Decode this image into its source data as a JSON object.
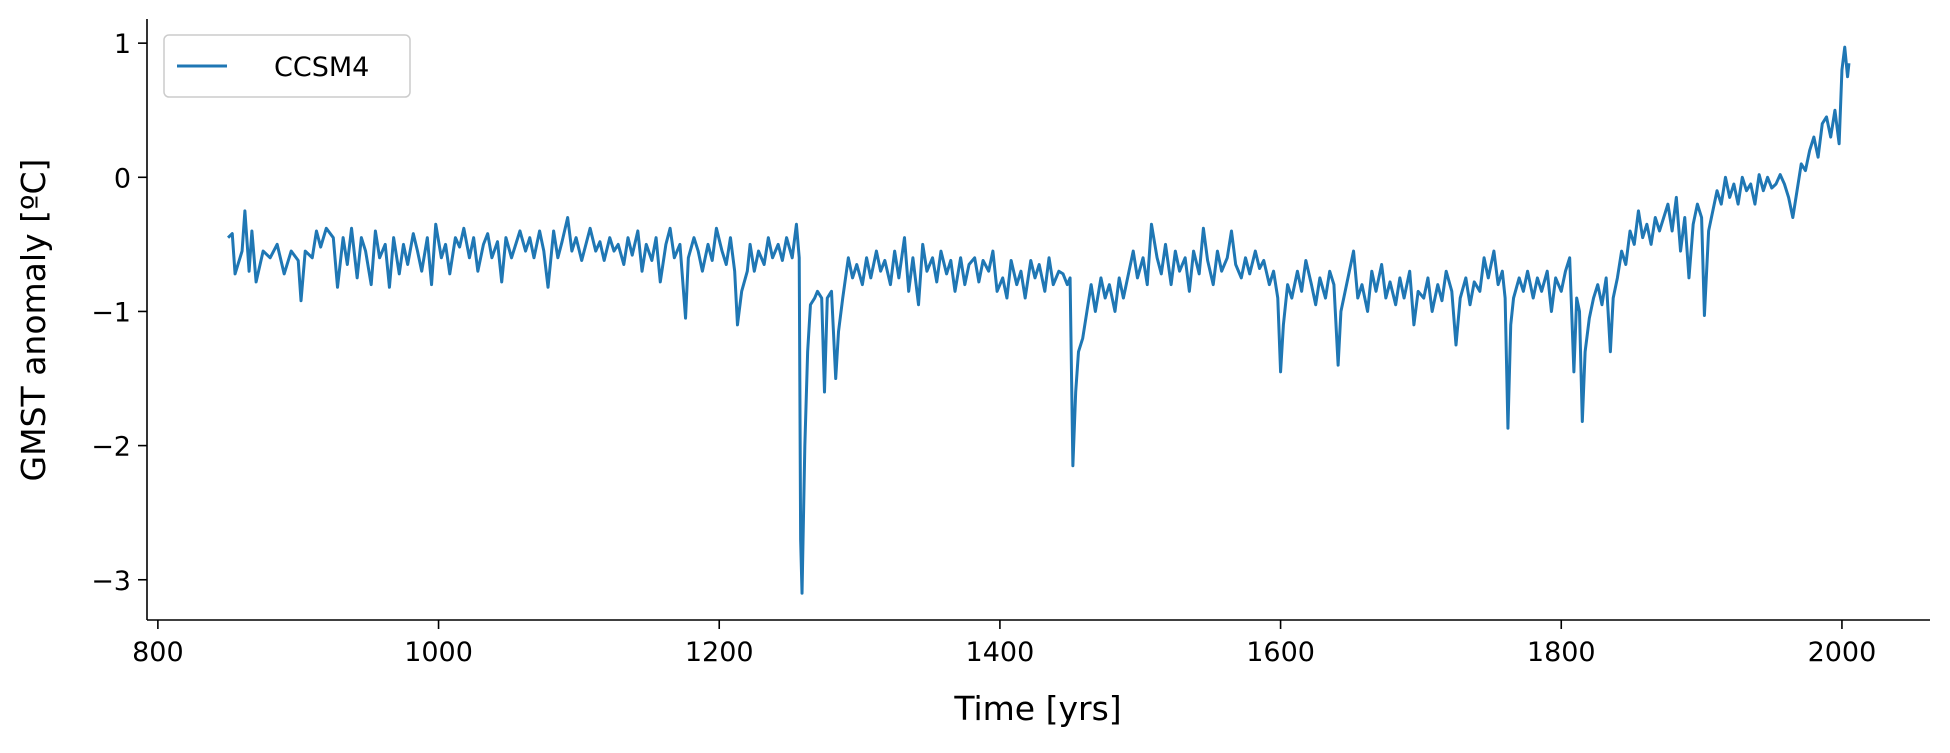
{
  "chart_data": {
    "type": "line",
    "xlabel": "Time [yrs]",
    "ylabel": "GMST anomaly [ºC]",
    "xlim": [
      792.25,
      2062.75
    ],
    "ylim": [
      -3.3,
      1.18
    ],
    "xticks": [
      800,
      1000,
      1200,
      1400,
      1600,
      1800,
      2000
    ],
    "yticks": [
      {
        "value": -3,
        "label": "−3"
      },
      {
        "value": -2,
        "label": "−2"
      },
      {
        "value": -1,
        "label": "−1"
      },
      0,
      1
    ],
    "legend": "upper left",
    "grid": false,
    "x": [
      850,
      853,
      855,
      860,
      862,
      865,
      867,
      870,
      875,
      880,
      885,
      890,
      895,
      900,
      902,
      905,
      910,
      913,
      916,
      920,
      925,
      928,
      932,
      935,
      938,
      942,
      945,
      948,
      952,
      955,
      958,
      962,
      965,
      968,
      972,
      975,
      978,
      982,
      985,
      988,
      992,
      995,
      998,
      1002,
      1005,
      1008,
      1012,
      1015,
      1018,
      1022,
      1025,
      1028,
      1032,
      1035,
      1038,
      1042,
      1045,
      1048,
      1052,
      1055,
      1058,
      1062,
      1065,
      1068,
      1072,
      1075,
      1078,
      1082,
      1085,
      1088,
      1092,
      1095,
      1098,
      1102,
      1105,
      1108,
      1112,
      1115,
      1118,
      1122,
      1125,
      1128,
      1132,
      1135,
      1138,
      1142,
      1145,
      1148,
      1152,
      1155,
      1158,
      1162,
      1165,
      1168,
      1172,
      1176,
      1178,
      1182,
      1185,
      1188,
      1192,
      1195,
      1198,
      1202,
      1205,
      1208,
      1211,
      1213,
      1216,
      1220,
      1222,
      1225,
      1228,
      1232,
      1235,
      1238,
      1242,
      1245,
      1248,
      1252,
      1255,
      1257,
      1258,
      1259,
      1261,
      1263,
      1265,
      1268,
      1270,
      1273,
      1275,
      1277,
      1280,
      1283,
      1285,
      1288,
      1292,
      1295,
      1298,
      1302,
      1305,
      1308,
      1312,
      1315,
      1318,
      1322,
      1325,
      1328,
      1332,
      1335,
      1338,
      1342,
      1345,
      1348,
      1352,
      1355,
      1358,
      1362,
      1365,
      1368,
      1372,
      1375,
      1378,
      1382,
      1385,
      1388,
      1392,
      1395,
      1398,
      1402,
      1405,
      1408,
      1412,
      1415,
      1418,
      1422,
      1425,
      1428,
      1432,
      1435,
      1438,
      1442,
      1445,
      1448,
      1450,
      1452,
      1454,
      1456,
      1459,
      1462,
      1465,
      1468,
      1472,
      1475,
      1478,
      1482,
      1485,
      1488,
      1492,
      1495,
      1498,
      1502,
      1505,
      1508,
      1512,
      1515,
      1518,
      1522,
      1525,
      1528,
      1532,
      1535,
      1538,
      1542,
      1545,
      1548,
      1552,
      1555,
      1558,
      1562,
      1565,
      1568,
      1572,
      1575,
      1578,
      1582,
      1585,
      1588,
      1592,
      1595,
      1598,
      1600,
      1602,
      1605,
      1608,
      1612,
      1615,
      1618,
      1622,
      1625,
      1628,
      1632,
      1635,
      1638,
      1641,
      1643,
      1645,
      1648,
      1652,
      1655,
      1658,
      1662,
      1665,
      1668,
      1672,
      1675,
      1678,
      1682,
      1685,
      1688,
      1692,
      1695,
      1698,
      1702,
      1705,
      1708,
      1712,
      1715,
      1718,
      1722,
      1725,
      1728,
      1732,
      1735,
      1738,
      1742,
      1745,
      1748,
      1752,
      1755,
      1758,
      1760,
      1762,
      1764,
      1766,
      1770,
      1773,
      1776,
      1780,
      1783,
      1786,
      1790,
      1793,
      1796,
      1800,
      1803,
      1806,
      1809,
      1811,
      1813,
      1815,
      1817,
      1820,
      1823,
      1826,
      1829,
      1832,
      1835,
      1837,
      1840,
      1843,
      1846,
      1849,
      1852,
      1855,
      1858,
      1861,
      1864,
      1867,
      1870,
      1873,
      1876,
      1879,
      1882,
      1885,
      1888,
      1891,
      1894,
      1897,
      1900,
      1902,
      1905,
      1908,
      1911,
      1914,
      1917,
      1920,
      1923,
      1926,
      1929,
      1932,
      1935,
      1938,
      1941,
      1944,
      1947,
      1950,
      1953,
      1956,
      1959,
      1962,
      1965,
      1968,
      1971,
      1974,
      1977,
      1980,
      1983,
      1986,
      1989,
      1992,
      1995,
      1998,
      2000,
      2002,
      2004,
      2005
    ],
    "series": [
      {
        "name": "CCSM4",
        "color": "#1f77b4",
        "values": [
          -0.45,
          -0.42,
          -0.72,
          -0.55,
          -0.25,
          -0.7,
          -0.4,
          -0.78,
          -0.55,
          -0.6,
          -0.5,
          -0.72,
          -0.55,
          -0.62,
          -0.92,
          -0.55,
          -0.6,
          -0.4,
          -0.52,
          -0.38,
          -0.45,
          -0.82,
          -0.45,
          -0.65,
          -0.38,
          -0.75,
          -0.45,
          -0.55,
          -0.8,
          -0.4,
          -0.6,
          -0.5,
          -0.82,
          -0.45,
          -0.72,
          -0.5,
          -0.65,
          -0.42,
          -0.55,
          -0.7,
          -0.45,
          -0.8,
          -0.35,
          -0.6,
          -0.5,
          -0.72,
          -0.45,
          -0.52,
          -0.38,
          -0.6,
          -0.45,
          -0.7,
          -0.5,
          -0.42,
          -0.6,
          -0.48,
          -0.78,
          -0.45,
          -0.6,
          -0.5,
          -0.4,
          -0.55,
          -0.45,
          -0.6,
          -0.4,
          -0.55,
          -0.82,
          -0.4,
          -0.6,
          -0.48,
          -0.3,
          -0.55,
          -0.45,
          -0.62,
          -0.5,
          -0.38,
          -0.55,
          -0.48,
          -0.62,
          -0.45,
          -0.55,
          -0.5,
          -0.65,
          -0.45,
          -0.58,
          -0.4,
          -0.7,
          -0.5,
          -0.62,
          -0.45,
          -0.78,
          -0.5,
          -0.38,
          -0.6,
          -0.5,
          -1.05,
          -0.6,
          -0.45,
          -0.55,
          -0.7,
          -0.5,
          -0.62,
          -0.38,
          -0.55,
          -0.65,
          -0.45,
          -0.7,
          -1.1,
          -0.85,
          -0.7,
          -0.5,
          -0.7,
          -0.55,
          -0.65,
          -0.45,
          -0.6,
          -0.5,
          -0.62,
          -0.45,
          -0.6,
          -0.35,
          -0.6,
          -2.7,
          -3.1,
          -2.0,
          -1.3,
          -0.95,
          -0.9,
          -0.85,
          -0.9,
          -1.6,
          -0.9,
          -0.85,
          -1.5,
          -1.15,
          -0.9,
          -0.6,
          -0.75,
          -0.65,
          -0.8,
          -0.6,
          -0.75,
          -0.55,
          -0.7,
          -0.62,
          -0.8,
          -0.55,
          -0.75,
          -0.45,
          -0.85,
          -0.6,
          -0.95,
          -0.5,
          -0.7,
          -0.6,
          -0.78,
          -0.55,
          -0.72,
          -0.62,
          -0.85,
          -0.6,
          -0.8,
          -0.65,
          -0.6,
          -0.78,
          -0.62,
          -0.7,
          -0.55,
          -0.85,
          -0.75,
          -0.9,
          -0.62,
          -0.8,
          -0.7,
          -0.9,
          -0.62,
          -0.75,
          -0.65,
          -0.85,
          -0.6,
          -0.8,
          -0.7,
          -0.72,
          -0.8,
          -0.75,
          -2.15,
          -1.6,
          -1.3,
          -1.2,
          -1.0,
          -0.8,
          -1.0,
          -0.75,
          -0.9,
          -0.8,
          -1.0,
          -0.75,
          -0.9,
          -0.7,
          -0.55,
          -0.75,
          -0.6,
          -0.8,
          -0.35,
          -0.6,
          -0.72,
          -0.5,
          -0.8,
          -0.55,
          -0.7,
          -0.6,
          -0.85,
          -0.55,
          -0.72,
          -0.38,
          -0.62,
          -0.8,
          -0.55,
          -0.7,
          -0.6,
          -0.4,
          -0.65,
          -0.75,
          -0.6,
          -0.72,
          -0.55,
          -0.68,
          -0.62,
          -0.8,
          -0.7,
          -0.9,
          -1.45,
          -1.1,
          -0.8,
          -0.9,
          -0.7,
          -0.85,
          -0.62,
          -0.8,
          -0.95,
          -0.75,
          -0.9,
          -0.7,
          -0.8,
          -1.4,
          -1.0,
          -0.9,
          -0.75,
          -0.55,
          -0.9,
          -0.8,
          -1.0,
          -0.7,
          -0.85,
          -0.65,
          -0.9,
          -0.78,
          -0.95,
          -0.75,
          -0.9,
          -0.7,
          -1.1,
          -0.85,
          -0.9,
          -0.75,
          -1.0,
          -0.8,
          -0.92,
          -0.7,
          -0.85,
          -1.25,
          -0.9,
          -0.75,
          -0.95,
          -0.78,
          -0.85,
          -0.6,
          -0.75,
          -0.55,
          -0.8,
          -0.7,
          -0.9,
          -1.87,
          -1.1,
          -0.9,
          -0.75,
          -0.85,
          -0.7,
          -0.9,
          -0.75,
          -0.85,
          -0.7,
          -1.0,
          -0.75,
          -0.85,
          -0.7,
          -0.6,
          -1.45,
          -0.9,
          -1.0,
          -1.82,
          -1.3,
          -1.05,
          -0.9,
          -0.8,
          -0.95,
          -0.75,
          -1.3,
          -0.9,
          -0.75,
          -0.55,
          -0.65,
          -0.4,
          -0.5,
          -0.25,
          -0.45,
          -0.35,
          -0.5,
          -0.3,
          -0.4,
          -0.3,
          -0.2,
          -0.4,
          -0.15,
          -0.55,
          -0.3,
          -0.75,
          -0.35,
          -0.2,
          -0.3,
          -1.03,
          -0.4,
          -0.25,
          -0.1,
          -0.2,
          0.0,
          -0.15,
          -0.05,
          -0.2,
          0.0,
          -0.1,
          -0.05,
          -0.2,
          0.02,
          -0.1,
          0.0,
          -0.08,
          -0.05,
          0.02,
          -0.05,
          -0.15,
          -0.3,
          -0.1,
          0.1,
          0.05,
          0.2,
          0.3,
          0.15,
          0.4,
          0.45,
          0.3,
          0.5,
          0.25,
          0.8,
          0.97,
          0.75,
          0.85
        ]
      }
    ]
  }
}
